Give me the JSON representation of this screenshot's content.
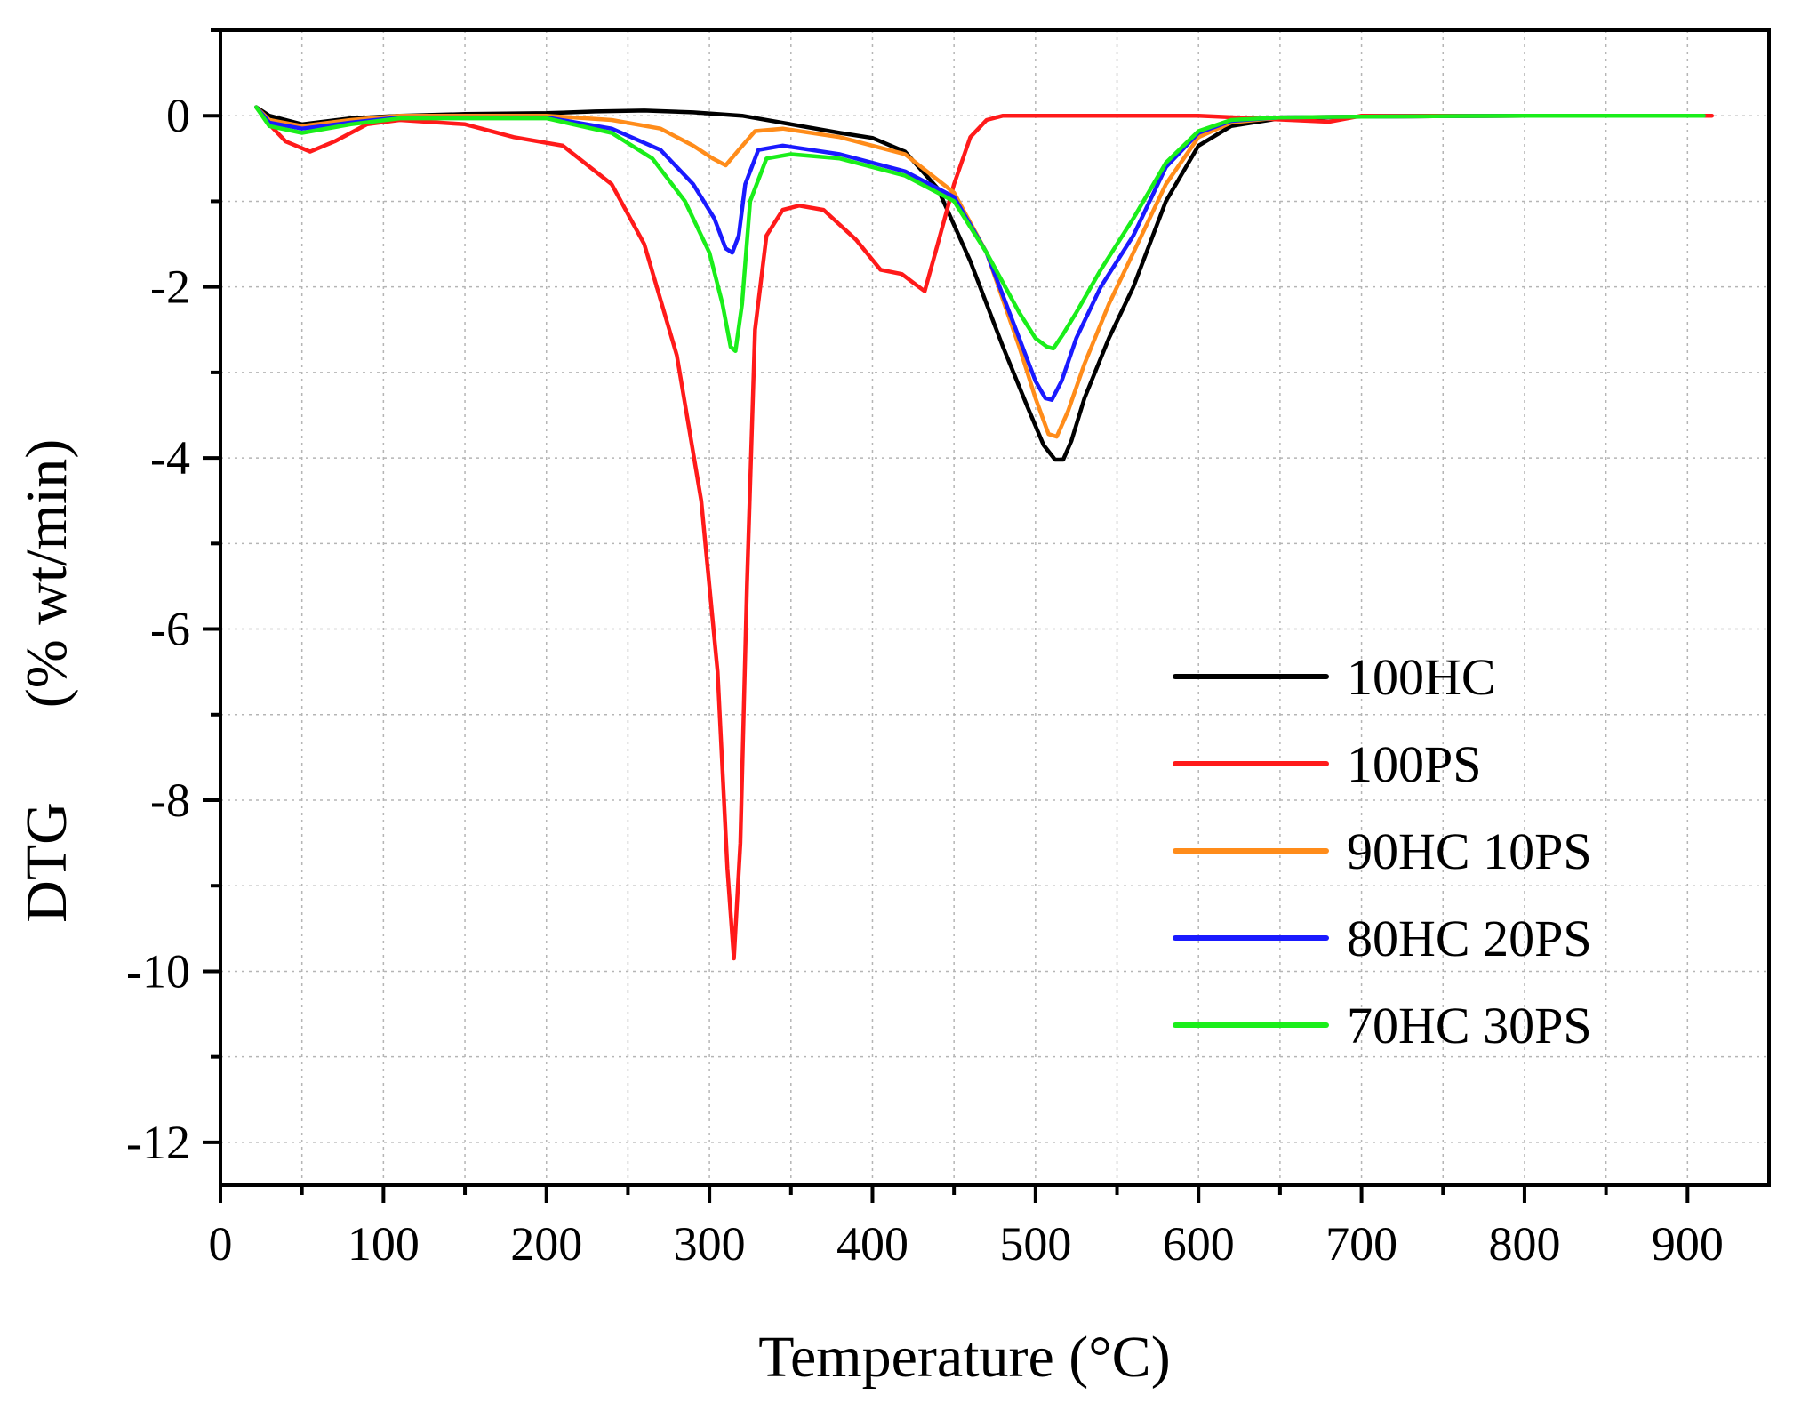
{
  "chart_data": {
    "type": "line",
    "title": "",
    "xlabel": "Temperature (°C)",
    "ylabel_main": "DTG",
    "ylabel_unit": "(% wt/min)",
    "xlim": [
      0,
      950
    ],
    "ylim": [
      -12.5,
      1
    ],
    "xticks": [
      0,
      100,
      200,
      300,
      400,
      500,
      600,
      700,
      800,
      900
    ],
    "xtick_labels": [
      "0",
      "100",
      "200",
      "300",
      "400",
      "500",
      "600",
      "700",
      "800",
      "900"
    ],
    "yticks": [
      0,
      -2,
      -4,
      -6,
      -8,
      -10,
      -12
    ],
    "ytick_labels": [
      "0",
      "-2",
      "-4",
      "-6",
      "-8",
      "-10",
      "-12"
    ],
    "grid": true,
    "legend_position": "center-right",
    "series": [
      {
        "name": "100HC",
        "color": "#000000",
        "x": [
          22,
          30,
          50,
          80,
          110,
          150,
          200,
          230,
          260,
          290,
          320,
          350,
          380,
          400,
          420,
          440,
          460,
          480,
          495,
          505,
          512,
          517,
          522,
          530,
          545,
          560,
          580,
          600,
          620,
          650,
          700,
          800,
          910
        ],
        "y": [
          0.1,
          0.0,
          -0.1,
          -0.03,
          0.0,
          0.02,
          0.03,
          0.05,
          0.06,
          0.04,
          0.0,
          -0.1,
          -0.2,
          -0.26,
          -0.42,
          -0.85,
          -1.7,
          -2.7,
          -3.4,
          -3.85,
          -4.02,
          -4.02,
          -3.8,
          -3.3,
          -2.6,
          -2.0,
          -1.0,
          -0.35,
          -0.12,
          -0.03,
          -0.01,
          0.0,
          0.0
        ]
      },
      {
        "name": "100PS",
        "color": "#ff1a1a",
        "x": [
          22,
          30,
          40,
          55,
          70,
          90,
          110,
          150,
          180,
          210,
          240,
          260,
          280,
          295,
          305,
          311,
          315,
          319,
          323,
          328,
          335,
          345,
          355,
          370,
          390,
          405,
          418,
          425,
          432,
          440,
          450,
          460,
          470,
          480,
          500,
          600,
          680,
          700,
          800,
          915
        ],
        "y": [
          0.1,
          -0.1,
          -0.3,
          -0.42,
          -0.3,
          -0.1,
          -0.05,
          -0.1,
          -0.25,
          -0.35,
          -0.8,
          -1.5,
          -2.8,
          -4.5,
          -6.5,
          -8.8,
          -9.85,
          -8.5,
          -5.5,
          -2.5,
          -1.4,
          -1.1,
          -1.05,
          -1.1,
          -1.45,
          -1.8,
          -1.85,
          -1.95,
          -2.05,
          -1.5,
          -0.8,
          -0.25,
          -0.05,
          0.0,
          0.0,
          0.0,
          -0.07,
          0.0,
          0.0,
          0.0
        ]
      },
      {
        "name": "90HC 10PS",
        "color": "#ff8c1a",
        "x": [
          22,
          30,
          50,
          80,
          110,
          150,
          200,
          240,
          270,
          290,
          302,
          310,
          318,
          328,
          345,
          380,
          420,
          450,
          470,
          490,
          500,
          508,
          513,
          520,
          530,
          545,
          560,
          580,
          600,
          620,
          650,
          700,
          800,
          910
        ],
        "y": [
          0.1,
          -0.05,
          -0.12,
          -0.05,
          0.0,
          0.0,
          0.0,
          -0.05,
          -0.15,
          -0.35,
          -0.5,
          -0.58,
          -0.4,
          -0.18,
          -0.15,
          -0.25,
          -0.45,
          -0.9,
          -1.6,
          -2.7,
          -3.3,
          -3.72,
          -3.75,
          -3.45,
          -2.9,
          -2.2,
          -1.6,
          -0.8,
          -0.25,
          -0.08,
          -0.02,
          -0.01,
          0.0,
          0.0
        ]
      },
      {
        "name": "80HC 20PS",
        "color": "#1a1aff",
        "x": [
          22,
          30,
          50,
          80,
          110,
          150,
          200,
          240,
          270,
          290,
          303,
          310,
          314,
          318,
          322,
          330,
          345,
          380,
          420,
          450,
          470,
          490,
          500,
          506,
          510,
          516,
          525,
          540,
          560,
          580,
          600,
          620,
          650,
          700,
          800,
          910
        ],
        "y": [
          0.1,
          -0.08,
          -0.15,
          -0.08,
          -0.02,
          -0.02,
          -0.02,
          -0.15,
          -0.4,
          -0.8,
          -1.2,
          -1.55,
          -1.6,
          -1.4,
          -0.8,
          -0.4,
          -0.35,
          -0.45,
          -0.65,
          -0.95,
          -1.6,
          -2.6,
          -3.1,
          -3.3,
          -3.32,
          -3.1,
          -2.6,
          -2.0,
          -1.4,
          -0.6,
          -0.2,
          -0.06,
          -0.02,
          -0.01,
          0.0,
          0.0
        ]
      },
      {
        "name": "70HC 30PS",
        "color": "#1aee1a",
        "x": [
          22,
          30,
          50,
          80,
          110,
          150,
          200,
          240,
          265,
          285,
          300,
          308,
          313,
          316,
          320,
          325,
          335,
          350,
          380,
          420,
          450,
          470,
          490,
          500,
          507,
          511,
          517,
          525,
          540,
          560,
          580,
          600,
          620,
          650,
          700,
          800,
          910
        ],
        "y": [
          0.1,
          -0.12,
          -0.2,
          -0.1,
          -0.03,
          -0.03,
          -0.03,
          -0.2,
          -0.5,
          -1.0,
          -1.6,
          -2.2,
          -2.7,
          -2.75,
          -2.2,
          -1.0,
          -0.5,
          -0.45,
          -0.5,
          -0.7,
          -1.0,
          -1.6,
          -2.3,
          -2.6,
          -2.7,
          -2.72,
          -2.55,
          -2.3,
          -1.8,
          -1.2,
          -0.55,
          -0.18,
          -0.05,
          -0.02,
          -0.01,
          0.0,
          0.0
        ]
      }
    ]
  }
}
